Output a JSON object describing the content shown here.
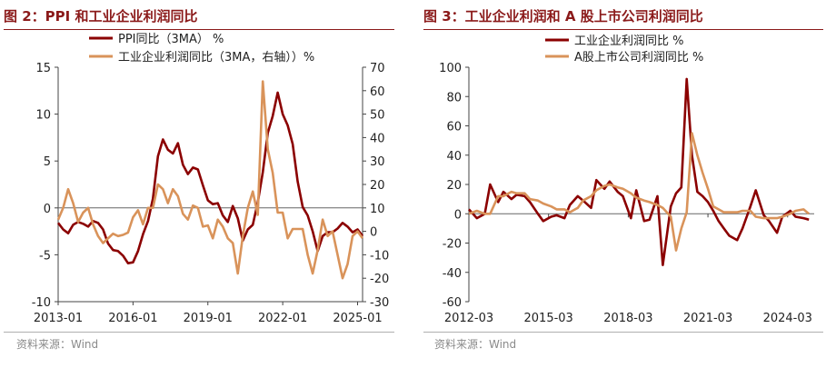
{
  "colors": {
    "dark_red": "#8b0000",
    "tan": "#d9935a",
    "title_red": "#8b1a1a",
    "source_gray": "#8a8a8a"
  },
  "left_panel": {
    "title": "图 2：PPI 和工业企业利润同比",
    "source": "资料来源：Wind"
  },
  "right_panel": {
    "title": "图 3：工业企业利润和 A 股上市公司利润同比",
    "source": "资料来源：Wind"
  },
  "chart_data": [
    {
      "type": "line",
      "title": "",
      "legend_placement": "top-center",
      "x_ticks": [
        "2013-01",
        "2016-01",
        "2019-01",
        "2022-01",
        "2025-01"
      ],
      "x_tick_positions": [
        2013.0,
        2016.0,
        2019.0,
        2022.0,
        2025.0
      ],
      "xlim": [
        2013.0,
        2025.2
      ],
      "y_left": {
        "ylim": [
          -10,
          15
        ],
        "ticks": [
          -10,
          -5,
          0,
          5,
          10,
          15
        ]
      },
      "y_right": {
        "ylim": [
          -30,
          70
        ],
        "ticks": [
          -30,
          -20,
          -10,
          0,
          10,
          20,
          30,
          40,
          50,
          60,
          70
        ]
      },
      "series": [
        {
          "name": "PPI同比（3MA） %",
          "axis": "left",
          "color": "#8b0000",
          "x": [
            2013.0,
            2013.2,
            2013.4,
            2013.6,
            2013.8,
            2014.0,
            2014.2,
            2014.4,
            2014.6,
            2014.8,
            2015.0,
            2015.2,
            2015.4,
            2015.6,
            2015.8,
            2016.0,
            2016.2,
            2016.4,
            2016.6,
            2016.8,
            2017.0,
            2017.2,
            2017.4,
            2017.6,
            2017.8,
            2018.0,
            2018.2,
            2018.4,
            2018.6,
            2018.8,
            2019.0,
            2019.2,
            2019.4,
            2019.6,
            2019.8,
            2020.0,
            2020.2,
            2020.4,
            2020.6,
            2020.8,
            2021.0,
            2021.2,
            2021.4,
            2021.6,
            2021.8,
            2022.0,
            2022.2,
            2022.4,
            2022.6,
            2022.8,
            2023.0,
            2023.2,
            2023.4,
            2023.6,
            2023.8,
            2024.0,
            2024.2,
            2024.4,
            2024.6,
            2024.8,
            2025.0,
            2025.2
          ],
          "y": [
            -1.6,
            -2.3,
            -2.7,
            -1.8,
            -1.5,
            -1.7,
            -2.0,
            -1.4,
            -1.6,
            -2.3,
            -3.8,
            -4.5,
            -4.6,
            -5.1,
            -5.9,
            -5.8,
            -4.6,
            -2.8,
            -1.4,
            1.0,
            5.5,
            7.3,
            6.2,
            5.8,
            6.9,
            4.6,
            3.6,
            4.3,
            4.1,
            2.4,
            0.8,
            0.4,
            0.5,
            -0.8,
            -1.5,
            0.2,
            -1.1,
            -3.5,
            -2.3,
            -1.8,
            0.6,
            3.8,
            8.0,
            9.8,
            12.3,
            10.0,
            8.8,
            6.8,
            2.8,
            0.1,
            -0.8,
            -2.5,
            -4.6,
            -3.0,
            -2.6,
            -2.6,
            -2.2,
            -1.6,
            -2.0,
            -2.6,
            -2.3,
            -3.0
          ]
        },
        {
          "name": "工业企业利润同比（3MA，右轴））%",
          "axis": "right",
          "color": "#d9935a",
          "x": [
            2013.0,
            2013.2,
            2013.4,
            2013.6,
            2013.8,
            2014.0,
            2014.2,
            2014.4,
            2014.6,
            2014.8,
            2015.0,
            2015.2,
            2015.4,
            2015.6,
            2015.8,
            2016.0,
            2016.2,
            2016.4,
            2016.6,
            2016.8,
            2017.0,
            2017.2,
            2017.4,
            2017.6,
            2017.8,
            2018.0,
            2018.2,
            2018.4,
            2018.6,
            2018.8,
            2019.0,
            2019.2,
            2019.4,
            2019.6,
            2019.8,
            2020.0,
            2020.2,
            2020.4,
            2020.6,
            2020.8,
            2021.0,
            2021.2,
            2021.4,
            2021.6,
            2021.8,
            2022.0,
            2022.2,
            2022.4,
            2022.6,
            2022.8,
            2023.0,
            2023.2,
            2023.4,
            2023.6,
            2023.8,
            2024.0,
            2024.2,
            2024.4,
            2024.6,
            2024.8,
            2025.0,
            2025.2
          ],
          "y": [
            5.0,
            10.0,
            18.0,
            12.0,
            4.0,
            8.0,
            10.0,
            3.0,
            -2.0,
            -5.0,
            -3.0,
            -1.0,
            -2.0,
            -1.5,
            -0.5,
            6.0,
            9.0,
            3.0,
            10.0,
            10.0,
            20.0,
            18.0,
            12.0,
            18.0,
            15.0,
            7.5,
            5.0,
            11.0,
            10.0,
            2.0,
            2.5,
            -3.0,
            5.0,
            2.0,
            -3.0,
            -5.0,
            -18.0,
            -2.0,
            10.0,
            17.0,
            7.0,
            64.0,
            35.0,
            25.0,
            8.0,
            8.0,
            -3.0,
            1.0,
            1.0,
            1.0,
            -10.0,
            -18.0,
            -8.0,
            5.0,
            -2.0,
            0.0,
            -10.0,
            -20.0,
            -14.0,
            -2.0,
            0.0,
            -3.0
          ]
        }
      ]
    },
    {
      "type": "line",
      "title": "",
      "legend_placement": "top-center",
      "x_ticks": [
        "2012-03",
        "2015-03",
        "2018-03",
        "2021-03",
        "2024-03"
      ],
      "x_tick_positions": [
        2012.2,
        2015.2,
        2018.2,
        2021.2,
        2024.2
      ],
      "xlim": [
        2012.2,
        2025.2
      ],
      "y": {
        "ylim": [
          -60,
          100
        ],
        "ticks": [
          -60,
          -40,
          -20,
          0,
          20,
          40,
          60,
          80,
          100
        ]
      },
      "series": [
        {
          "name": "工业企业利润同比 %",
          "color": "#8b0000",
          "x": [
            2012.2,
            2012.5,
            2012.8,
            2013.0,
            2013.3,
            2013.5,
            2013.8,
            2014.0,
            2014.3,
            2014.5,
            2014.8,
            2015.0,
            2015.3,
            2015.5,
            2015.8,
            2016.0,
            2016.3,
            2016.5,
            2016.8,
            2017.0,
            2017.3,
            2017.5,
            2017.8,
            2018.0,
            2018.3,
            2018.5,
            2018.8,
            2019.0,
            2019.3,
            2019.5,
            2019.8,
            2020.0,
            2020.2,
            2020.4,
            2020.6,
            2020.8,
            2021.0,
            2021.2,
            2021.4,
            2021.6,
            2021.8,
            2022.0,
            2022.3,
            2022.5,
            2022.8,
            2023.0,
            2023.3,
            2023.5,
            2023.8,
            2024.0,
            2024.3,
            2024.5,
            2024.8,
            2025.0
          ],
          "y": [
            3,
            -3,
            0,
            20,
            8,
            15,
            10,
            13,
            12,
            8,
            0,
            -5,
            -2,
            -1,
            -3,
            6,
            12,
            9,
            4,
            23,
            17,
            22,
            15,
            12,
            -3,
            16,
            -5,
            -4,
            12,
            -35,
            5,
            14,
            18,
            92,
            40,
            15,
            12,
            8,
            2,
            -5,
            -10,
            -15,
            -18,
            -10,
            5,
            16,
            -1,
            -5,
            -13,
            -2,
            2,
            -2,
            -3,
            -4
          ]
        },
        {
          "name": "A股上市公司利润同比 %",
          "color": "#d9935a",
          "x": [
            2012.2,
            2012.5,
            2012.8,
            2013.0,
            2013.3,
            2013.5,
            2013.8,
            2014.0,
            2014.3,
            2014.5,
            2014.8,
            2015.0,
            2015.3,
            2015.5,
            2015.8,
            2016.0,
            2016.3,
            2016.5,
            2016.8,
            2017.0,
            2017.3,
            2017.5,
            2017.8,
            2018.0,
            2018.3,
            2018.5,
            2018.8,
            2019.0,
            2019.3,
            2019.5,
            2019.8,
            2020.0,
            2020.2,
            2020.4,
            2020.6,
            2020.8,
            2021.0,
            2021.2,
            2021.4,
            2021.6,
            2021.8,
            2022.0,
            2022.3,
            2022.5,
            2022.8,
            2023.0,
            2023.3,
            2023.5,
            2023.8,
            2024.0,
            2024.3,
            2024.5,
            2024.8,
            2025.0
          ],
          "y": [
            0,
            2,
            0,
            0,
            12,
            12,
            15,
            14,
            14,
            10,
            9,
            7,
            5,
            3,
            3,
            1,
            4,
            9,
            12,
            16,
            19,
            20,
            18,
            17,
            14,
            11,
            9,
            8,
            6,
            4,
            -2,
            -25,
            -10,
            1,
            55,
            40,
            28,
            17,
            5,
            3,
            1,
            1,
            1,
            2,
            2,
            -2,
            -3,
            -3,
            -3,
            -2,
            0,
            2,
            3,
            0
          ]
        }
      ]
    }
  ]
}
